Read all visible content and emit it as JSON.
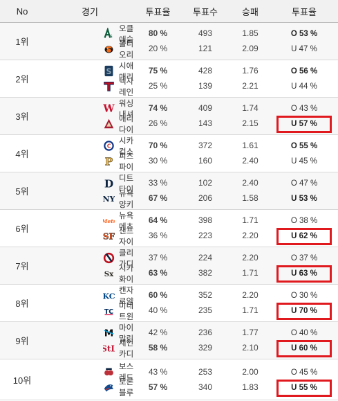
{
  "header": {
    "no": "No",
    "game": "경기",
    "vote_rate": "투표율",
    "votes": "투표수",
    "win_rate": "승패",
    "ou_rate": "투표율"
  },
  "colors": {
    "highlight": "#e0191f",
    "header_bg": "#f1f1f1",
    "alt_row_bg": "#f7f7f7"
  },
  "games": [
    {
      "rank": "1위",
      "teams": [
        {
          "name": "오클애슬",
          "logo": "athletics-logo",
          "rate": "80 %",
          "votes": "493",
          "odds": "1.85",
          "ou": "O 53 %",
          "rate_bold": true,
          "ou_bold": true,
          "ou_highlight": false
        },
        {
          "name": "볼티오리",
          "logo": "orioles-logo",
          "rate": "20 %",
          "votes": "121",
          "odds": "2.09",
          "ou": "U 47 %",
          "rate_bold": false,
          "ou_bold": false,
          "ou_highlight": false
        }
      ]
    },
    {
      "rank": "2위",
      "teams": [
        {
          "name": "시애매리",
          "logo": "mariners-logo",
          "rate": "75 %",
          "votes": "428",
          "odds": "1.76",
          "ou": "O 56 %",
          "rate_bold": true,
          "ou_bold": true,
          "ou_highlight": false
        },
        {
          "name": "텍사레인",
          "logo": "rangers-logo",
          "rate": "25 %",
          "votes": "139",
          "odds": "2.21",
          "ou": "U 44 %",
          "rate_bold": false,
          "ou_bold": false,
          "ou_highlight": false
        }
      ]
    },
    {
      "rank": "3위",
      "teams": [
        {
          "name": "워싱내셔",
          "logo": "nationals-logo",
          "rate": "74 %",
          "votes": "409",
          "odds": "1.74",
          "ou": "O 43 %",
          "rate_bold": true,
          "ou_bold": false,
          "ou_highlight": false
        },
        {
          "name": "애리다이",
          "logo": "diamondbacks-logo",
          "rate": "26 %",
          "votes": "143",
          "odds": "2.15",
          "ou": "U 57 %",
          "rate_bold": false,
          "ou_bold": true,
          "ou_highlight": true
        }
      ]
    },
    {
      "rank": "4위",
      "teams": [
        {
          "name": "시카컵스",
          "logo": "cubs-logo",
          "rate": "70 %",
          "votes": "372",
          "odds": "1.61",
          "ou": "O 55 %",
          "rate_bold": true,
          "ou_bold": true,
          "ou_highlight": false
        },
        {
          "name": "피츠파이",
          "logo": "pirates-logo",
          "rate": "30 %",
          "votes": "160",
          "odds": "2.40",
          "ou": "U 45 %",
          "rate_bold": false,
          "ou_bold": false,
          "ou_highlight": false
        }
      ]
    },
    {
      "rank": "5위",
      "teams": [
        {
          "name": "디트타이",
          "logo": "tigers-logo",
          "rate": "33 %",
          "votes": "102",
          "odds": "2.40",
          "ou": "O 47 %",
          "rate_bold": false,
          "ou_bold": false,
          "ou_highlight": false
        },
        {
          "name": "뉴욕양키",
          "logo": "yankees-logo",
          "rate": "67 %",
          "votes": "206",
          "odds": "1.58",
          "ou": "U 53 %",
          "rate_bold": true,
          "ou_bold": true,
          "ou_highlight": false
        }
      ]
    },
    {
      "rank": "6위",
      "teams": [
        {
          "name": "뉴욕메츠",
          "logo": "mets-logo",
          "rate": "64 %",
          "votes": "398",
          "odds": "1.71",
          "ou": "O 38 %",
          "rate_bold": true,
          "ou_bold": false,
          "ou_highlight": false
        },
        {
          "name": "샌프자이",
          "logo": "giants-logo",
          "rate": "36 %",
          "votes": "223",
          "odds": "2.20",
          "ou": "U 62 %",
          "rate_bold": false,
          "ou_bold": true,
          "ou_highlight": true
        }
      ]
    },
    {
      "rank": "7위",
      "teams": [
        {
          "name": "클리가디",
          "logo": "guardians-logo",
          "rate": "37 %",
          "votes": "224",
          "odds": "2.20",
          "ou": "O 37 %",
          "rate_bold": false,
          "ou_bold": false,
          "ou_highlight": false
        },
        {
          "name": "시카화이",
          "logo": "whitesox-logo",
          "rate": "63 %",
          "votes": "382",
          "odds": "1.71",
          "ou": "U 63 %",
          "rate_bold": true,
          "ou_bold": true,
          "ou_highlight": true
        }
      ]
    },
    {
      "rank": "8위",
      "teams": [
        {
          "name": "캔자로얄",
          "logo": "royals-logo",
          "rate": "60 %",
          "votes": "352",
          "odds": "2.20",
          "ou": "O 30 %",
          "rate_bold": true,
          "ou_bold": false,
          "ou_highlight": false
        },
        {
          "name": "미네트윈",
          "logo": "twins-logo",
          "rate": "40 %",
          "votes": "235",
          "odds": "1.71",
          "ou": "U 70 %",
          "rate_bold": false,
          "ou_bold": true,
          "ou_highlight": true
        }
      ]
    },
    {
      "rank": "9위",
      "teams": [
        {
          "name": "마이말린",
          "logo": "marlins-logo",
          "rate": "42 %",
          "votes": "236",
          "odds": "1.77",
          "ou": "O 40 %",
          "rate_bold": false,
          "ou_bold": false,
          "ou_highlight": false
        },
        {
          "name": "세인카디",
          "logo": "cardinals-logo",
          "rate": "58 %",
          "votes": "329",
          "odds": "2.10",
          "ou": "U 60 %",
          "rate_bold": true,
          "ou_bold": true,
          "ou_highlight": true
        }
      ]
    },
    {
      "rank": "10위",
      "teams": [
        {
          "name": "보스레드",
          "logo": "redsox-logo",
          "rate": "43 %",
          "votes": "253",
          "odds": "2.00",
          "ou": "O 45 %",
          "rate_bold": false,
          "ou_bold": false,
          "ou_highlight": false
        },
        {
          "name": "토론블루",
          "logo": "bluejays-logo",
          "rate": "57 %",
          "votes": "340",
          "odds": "1.83",
          "ou": "U 55 %",
          "rate_bold": true,
          "ou_bold": true,
          "ou_highlight": true
        }
      ]
    }
  ]
}
